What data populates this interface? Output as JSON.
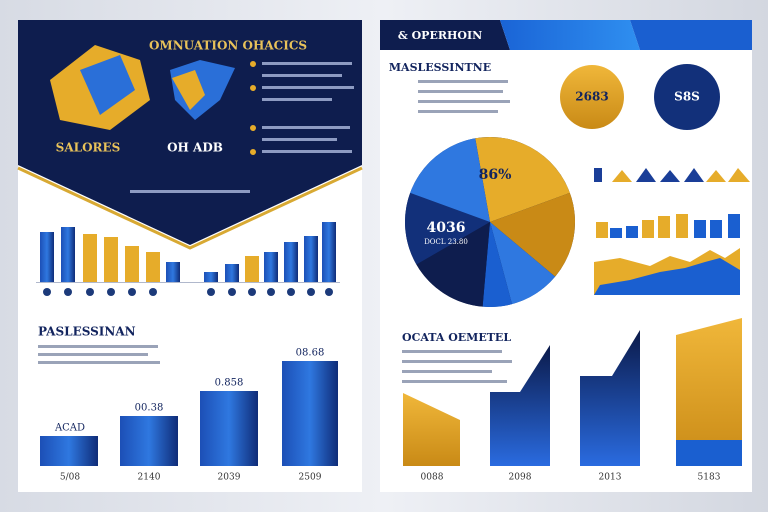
{
  "left_page": {
    "header": {
      "title": "OMNUATION OHACICS",
      "label_a": "SALORES",
      "label_b": "OH ADB"
    },
    "section_title": "PASLESSINAN",
    "bar_labels": [
      "ACAD",
      "00.38",
      "0.858",
      "08.68"
    ],
    "years": [
      "5/08",
      "2140",
      "2039",
      "2509"
    ]
  },
  "right_page": {
    "header": {
      "title": "& OPERHOIN"
    },
    "subtitle": "MASLESSINTNE",
    "circles": [
      "2683",
      "S8S"
    ],
    "pie": {
      "label_a": "86%",
      "label_b": "4036",
      "label_c": "DOCL 23.80"
    },
    "section_title": "OCATA OEMETEL",
    "years": [
      "0088",
      "2098",
      "2013",
      "5183"
    ]
  }
}
